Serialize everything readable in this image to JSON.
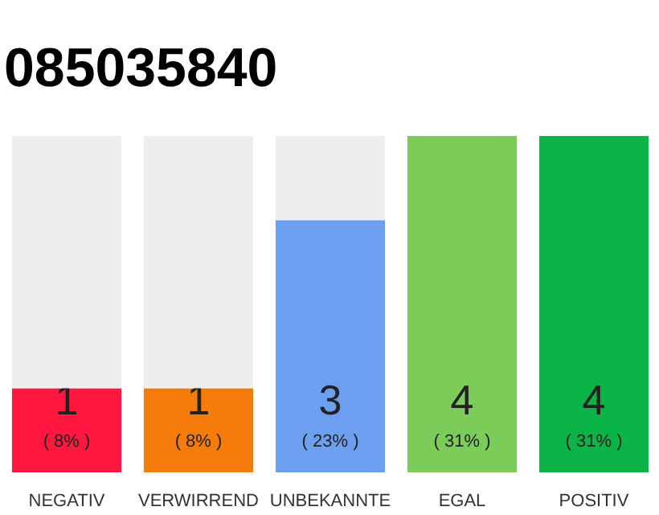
{
  "chart_data": {
    "type": "bar",
    "title": "085035840",
    "categories": [
      "NEGATIV",
      "VERWIRREND",
      "UNBEKANNTE",
      "EGAL",
      "POSITIV"
    ],
    "stacked": true,
    "series": [
      {
        "values": [
          1,
          1,
          3,
          4,
          4
        ],
        "colors": [
          "#ff1740",
          "#f57c0a",
          "#6c9ff0",
          "#7ccc5a",
          "#0ab446"
        ],
        "value_labels": [
          "1",
          "1",
          "3",
          "4",
          "4"
        ]
      },
      {
        "values": [
          3,
          3,
          1,
          0,
          0
        ],
        "color": "#eeeeee"
      }
    ],
    "annotations": [
      "( 8% )",
      "( 8% )",
      "( 23% )",
      "( 31% )",
      "( 31% )"
    ]
  }
}
